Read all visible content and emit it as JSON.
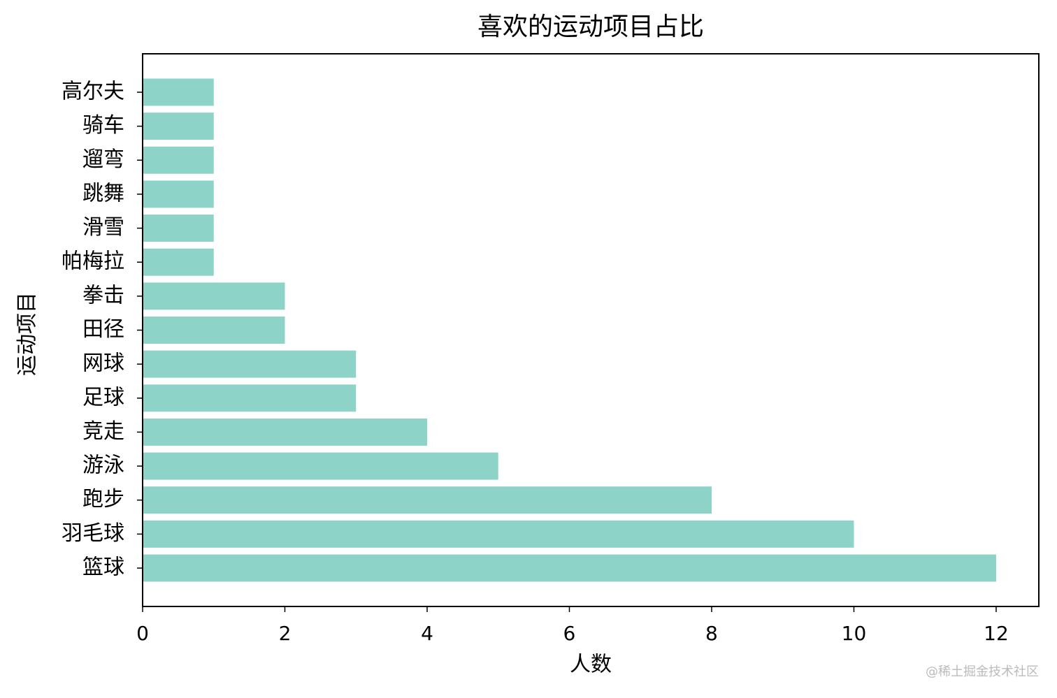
{
  "chart_data": {
    "type": "barh",
    "title": "喜欢的运动项目占比",
    "xlabel": "人数",
    "ylabel": "运动项目",
    "categories": [
      "篮球",
      "羽毛球",
      "跑步",
      "游泳",
      "竞走",
      "足球",
      "网球",
      "田径",
      "拳击",
      "帕梅拉",
      "滑雪",
      "跳舞",
      "遛弯",
      "骑车",
      "高尔夫"
    ],
    "values": [
      12,
      10,
      8,
      5,
      4,
      3,
      3,
      2,
      2,
      1,
      1,
      1,
      1,
      1,
      1
    ],
    "color": "#8dd3c7",
    "xlim": [
      0,
      12.6
    ],
    "xticks": [
      0,
      2,
      4,
      6,
      8,
      10,
      12
    ],
    "grid": false
  },
  "watermark": "@稀土掘金技术社区"
}
